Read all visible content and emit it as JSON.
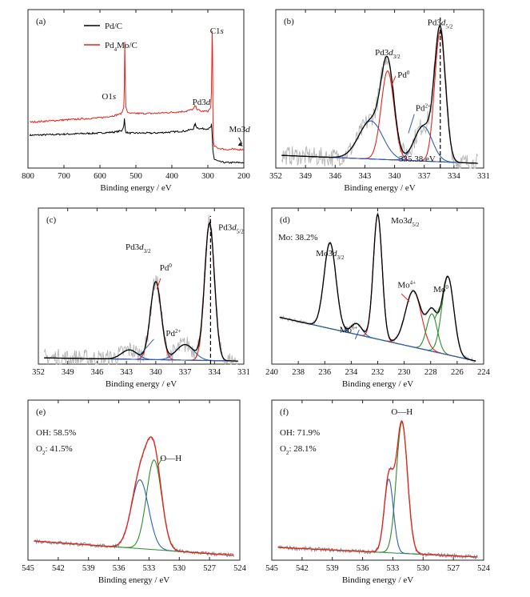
{
  "chart_data": [
    {
      "panel": "(a)",
      "type": "line",
      "xlabel": "Binding energy / eV",
      "xlim": [
        800,
        200
      ],
      "xticks": [
        800,
        700,
        600,
        500,
        400,
        300,
        200
      ],
      "legend_position": "top-left",
      "colors": {
        "Pd/C": "#000000",
        "Pd4Mo/C": "#e8221b"
      },
      "series": [
        {
          "name": "Pd/C",
          "color": "#000000",
          "x": [
            795,
            700,
            600,
            560,
            540,
            534,
            532,
            530,
            528,
            520,
            450,
            400,
            360,
            340,
            337,
            335,
            330,
            320,
            300,
            292,
            290,
            288,
            286,
            284,
            282,
            270,
            250,
            230,
            220,
            200
          ],
          "y": [
            0.3,
            0.31,
            0.32,
            0.33,
            0.34,
            0.38,
            0.45,
            0.37,
            0.33,
            0.32,
            0.32,
            0.33,
            0.34,
            0.36,
            0.39,
            0.4,
            0.37,
            0.36,
            0.36,
            0.37,
            0.4,
            0.3,
            0.16,
            0.12,
            0.08,
            0.06,
            0.05,
            0.05,
            0.05,
            0.05
          ]
        },
        {
          "name": "Pd4Mo/C",
          "color": "#e8221b",
          "x": [
            795,
            700,
            600,
            560,
            540,
            534,
            532,
            531,
            530,
            528,
            524,
            520,
            450,
            400,
            360,
            340,
            337,
            335,
            330,
            320,
            300,
            292,
            290,
            289,
            288,
            287,
            286,
            285,
            284,
            282,
            270,
            250,
            235,
            232,
            230,
            200
          ],
          "y": [
            0.42,
            0.44,
            0.46,
            0.48,
            0.5,
            0.55,
            0.75,
            1.15,
            0.9,
            0.56,
            0.52,
            0.5,
            0.5,
            0.51,
            0.52,
            0.54,
            0.56,
            0.57,
            0.54,
            0.52,
            0.52,
            0.55,
            0.7,
            0.95,
            1.25,
            1.1,
            0.55,
            0.3,
            0.22,
            0.2,
            0.18,
            0.17,
            0.17,
            0.18,
            0.17,
            0.17
          ]
        }
      ],
      "annotations": [
        {
          "text": "O1",
          "italic": "s",
          "x": 575,
          "y": 0.63
        },
        {
          "text": "C1",
          "italic": "s",
          "x": 275,
          "y": 1.23
        },
        {
          "text": "Pd3",
          "italic": "d",
          "x": 318,
          "y": 0.58
        },
        {
          "text": "Mo3",
          "italic": "d",
          "x": 212,
          "y": 0.33
        }
      ]
    },
    {
      "panel": "(b)",
      "type": "line",
      "xlabel": "Binding energy / eV",
      "xlim": [
        352,
        331
      ],
      "xticks": [
        352,
        349,
        346,
        343,
        340,
        337,
        334,
        331
      ],
      "vline": 335.38,
      "vline_label": "335.38 eV",
      "peaks": [
        {
          "label": "Pd0",
          "color": "#e8221b",
          "center": 335.4,
          "height": 0.82,
          "width": 0.55
        },
        {
          "label": "Pd0",
          "color": "#e8221b",
          "center": 340.7,
          "height": 0.56,
          "width": 0.65
        },
        {
          "label": "Pd2+",
          "color": "#2f5fb5",
          "center": 337.1,
          "height": 0.22,
          "width": 0.9
        },
        {
          "label": "Pd2+",
          "color": "#2f5fb5",
          "center": 342.4,
          "height": 0.24,
          "width": 1.2
        }
      ],
      "baseline": {
        "start": 0.08,
        "end": 0.03
      },
      "labels": [
        {
          "text": "Pd3",
          "italic": "d",
          "sub": "3/2",
          "color": "#111111"
        },
        {
          "text": "Pd3",
          "italic": "d",
          "sub": "5/2",
          "color": "#111111"
        },
        {
          "text": "Pd",
          "sup": "0",
          "color": "#e8221b"
        },
        {
          "text": "Pd",
          "sup": "2+",
          "color": "#2f5fb5"
        }
      ]
    },
    {
      "panel": "(c)",
      "type": "line",
      "xlabel": "Binding energy / eV",
      "xlim": [
        352,
        331
      ],
      "xticks": [
        352,
        349,
        346,
        343,
        340,
        337,
        334,
        331
      ],
      "vline": 334.4,
      "peaks": [
        {
          "label": "Pd0",
          "color": "#e8221b",
          "center": 334.5,
          "height": 0.88,
          "width": 0.5
        },
        {
          "label": "Pd0",
          "color": "#e8221b",
          "center": 340.0,
          "height": 0.5,
          "width": 0.55
        },
        {
          "label": "Pd2+",
          "color": "#2f5fb5",
          "center": 337.0,
          "height": 0.1,
          "width": 0.9
        },
        {
          "label": "Pd2+",
          "color": "#2f5fb5",
          "center": 342.7,
          "height": 0.06,
          "width": 0.8
        }
      ],
      "baseline": {
        "start": 0.04,
        "end": 0.02
      },
      "labels": [
        {
          "text": "Pd3",
          "italic": "d",
          "sub": "3/2",
          "color": "#111111"
        },
        {
          "text": "Pd3",
          "italic": "d",
          "sub": "5/2",
          "color": "#111111"
        },
        {
          "text": "Pd",
          "sup": "0",
          "color": "#e8221b"
        },
        {
          "text": "Pd",
          "sup": "2+",
          "color": "#2f5fb5"
        }
      ]
    },
    {
      "panel": "(d)",
      "type": "line",
      "xlabel": "Binding energy / eV",
      "xlim": [
        240,
        224
      ],
      "xticks": [
        240,
        238,
        236,
        234,
        232,
        230,
        228,
        226,
        224
      ],
      "note": "Mo: 38.2%",
      "peaks": [
        {
          "label": "Mo6+",
          "color": "#2f5fb5",
          "center": 235.6,
          "height": 0.55,
          "width": 0.45
        },
        {
          "label": "Mo6+",
          "color": "#2f5fb5",
          "center": 233.6,
          "height": 0.07,
          "width": 0.4
        },
        {
          "label": "Mo4+",
          "color": "#e8221b",
          "center": 232.0,
          "height": 0.8,
          "width": 0.33
        },
        {
          "label": "Mo4+",
          "color": "#e8221b",
          "center": 229.3,
          "height": 0.36,
          "width": 0.6
        },
        {
          "label": "Mo0",
          "color": "#2e8b2e",
          "center": 226.7,
          "height": 0.5,
          "width": 0.45
        },
        {
          "label": "Mo0",
          "color": "#2e8b2e",
          "center": 227.9,
          "height": 0.24,
          "width": 0.4
        }
      ],
      "baseline": {
        "start": 0.3,
        "end": 0.02
      },
      "labels": [
        {
          "text": "Mo3",
          "italic": "d",
          "sub": "3/2",
          "color": "#111111"
        },
        {
          "text": "Mo3",
          "italic": "d",
          "sub": "5/2",
          "color": "#111111"
        },
        {
          "text": "Mo",
          "sup": "6+",
          "color": "#2f5fb5"
        },
        {
          "text": "Mo",
          "sup": "4+",
          "color": "#e8221b"
        },
        {
          "text": "Mo",
          "sup": "0",
          "color": "#2e8b2e"
        }
      ]
    },
    {
      "panel": "(e)",
      "type": "line",
      "xlabel": "Binding energy / eV",
      "xlim": [
        545,
        524
      ],
      "xticks": [
        545,
        542,
        539,
        536,
        533,
        530,
        527,
        524
      ],
      "legend": [
        "OH: 58.5%",
        "O2: 41.5%"
      ],
      "peaks": [
        {
          "label": "O—H",
          "color": "#2e8b2e",
          "center": 532.5,
          "height": 0.56,
          "width": 0.75
        },
        {
          "label": "O2",
          "color": "#2f5fb5",
          "center": 533.9,
          "height": 0.43,
          "width": 0.85
        }
      ],
      "baseline": {
        "start": 0.12,
        "end": 0.03
      },
      "labels": [
        {
          "text": "O—H",
          "color": "#2e8b2e"
        }
      ]
    },
    {
      "panel": "(f)",
      "type": "line",
      "xlabel": "Binding energy / eV",
      "xlim": [
        545,
        524
      ],
      "xticks": [
        545,
        542,
        539,
        536,
        533,
        530,
        527,
        524
      ],
      "legend": [
        "OH: 71.9%",
        "O2: 28.1%"
      ],
      "peaks": [
        {
          "label": "O—H",
          "color": "#2e8b2e",
          "center": 532.1,
          "height": 0.82,
          "width": 0.55
        },
        {
          "label": "O2",
          "color": "#2f5fb5",
          "center": 533.4,
          "height": 0.46,
          "width": 0.45
        }
      ],
      "baseline": {
        "start": 0.08,
        "end": 0.02
      },
      "labels": [
        {
          "text": "O—H",
          "color": "#2e8b2e"
        }
      ]
    }
  ]
}
